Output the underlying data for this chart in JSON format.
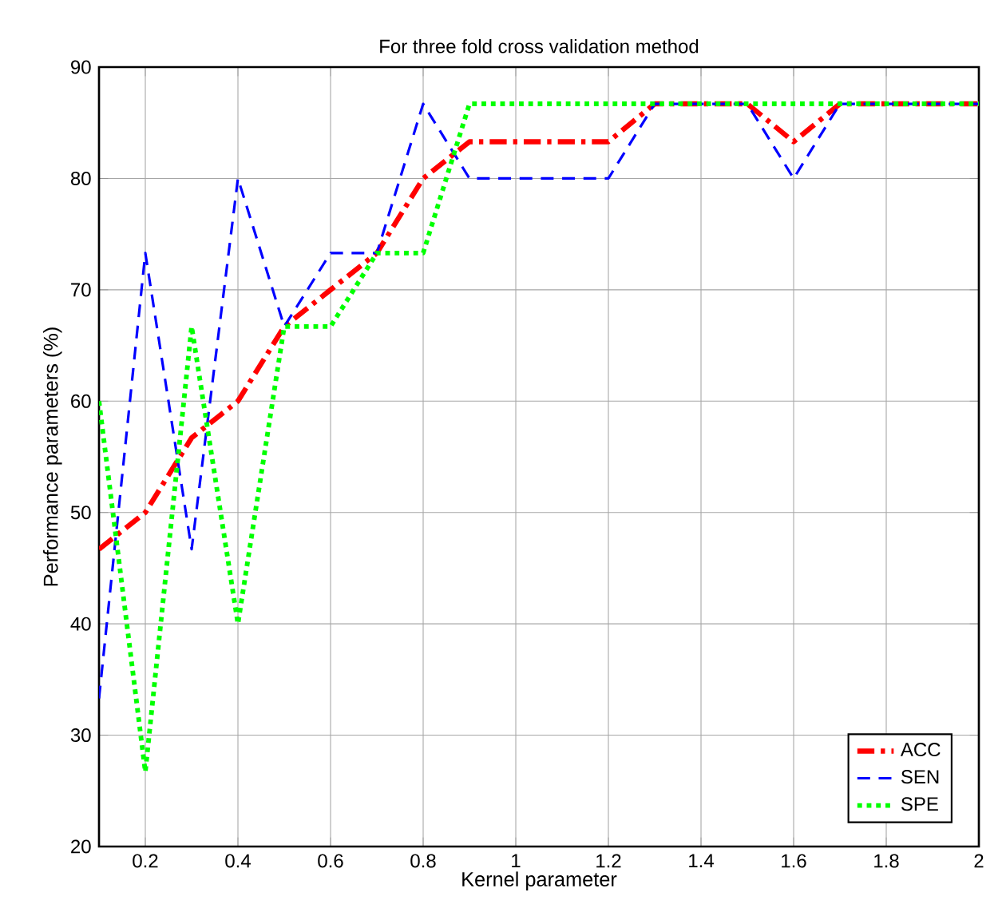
{
  "chart_data": {
    "type": "line",
    "title": "For three fold cross validation method",
    "xlabel": "Kernel parameter",
    "ylabel": "Performance parameters (%)",
    "x": [
      0.1,
      0.2,
      0.3,
      0.4,
      0.5,
      0.6,
      0.7,
      0.8,
      0.9,
      1.0,
      1.1,
      1.2,
      1.3,
      1.4,
      1.5,
      1.6,
      1.7,
      1.8,
      1.9,
      2.0
    ],
    "series": [
      {
        "name": "ACC",
        "color": "#ff0000",
        "line_style": "dashdot",
        "values": [
          46.7,
          50,
          56.7,
          60,
          66.7,
          70,
          73.3,
          80,
          83.3,
          83.3,
          83.3,
          83.3,
          86.7,
          86.7,
          86.7,
          83.3,
          86.7,
          86.7,
          86.7,
          86.7
        ]
      },
      {
        "name": "SEN",
        "color": "#0000ff",
        "line_style": "dashed",
        "values": [
          33.3,
          73.3,
          46.7,
          80,
          66.7,
          73.3,
          73.3,
          86.7,
          80,
          80,
          80,
          80,
          86.7,
          86.7,
          86.7,
          80,
          86.7,
          86.7,
          86.7,
          86.7
        ]
      },
      {
        "name": "SPE",
        "color": "#00ff00",
        "line_style": "dotted",
        "values": [
          60,
          26.7,
          66.7,
          40,
          66.7,
          66.7,
          73.3,
          73.3,
          86.7,
          86.7,
          86.7,
          86.7,
          86.7,
          86.7,
          86.7,
          86.7,
          86.7,
          86.7,
          86.7,
          86.7
        ]
      }
    ],
    "xlim": [
      0.1,
      2
    ],
    "xticks": [
      0.2,
      0.4,
      0.6,
      0.8,
      1,
      1.2,
      1.4,
      1.6,
      1.8,
      2
    ],
    "ylim": [
      20,
      90
    ],
    "yticks": [
      20,
      30,
      40,
      50,
      60,
      70,
      80,
      90
    ],
    "grid": true,
    "legend": "bottom right"
  }
}
